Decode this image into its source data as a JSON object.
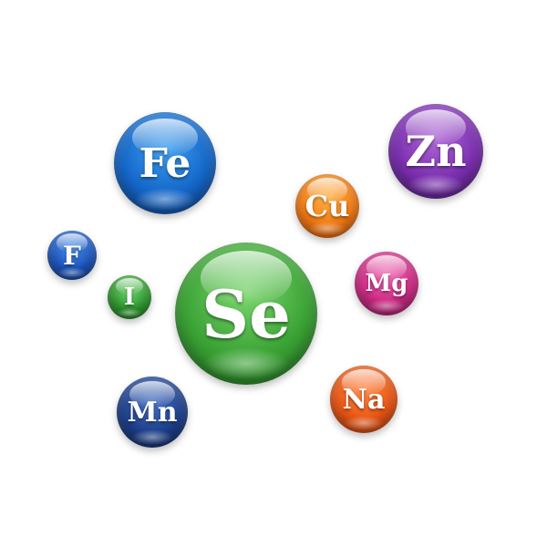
{
  "elements": [
    {
      "id": "fe",
      "symbol": "Fe",
      "color": "#1467c9"
    },
    {
      "id": "zn",
      "symbol": "Zn",
      "color": "#7b2fb0"
    },
    {
      "id": "cu",
      "symbol": "Cu",
      "color": "#f57b12"
    },
    {
      "id": "f",
      "symbol": "F",
      "color": "#1b56c0"
    },
    {
      "id": "i",
      "symbol": "I",
      "color": "#2e9b2e"
    },
    {
      "id": "se",
      "symbol": "Se",
      "color": "#3ba335"
    },
    {
      "id": "mg",
      "symbol": "Mg",
      "color": "#d02a86"
    },
    {
      "id": "mn",
      "symbol": "Mn",
      "color": "#1d3f8c"
    },
    {
      "id": "na",
      "symbol": "Na",
      "color": "#ec5714"
    }
  ]
}
